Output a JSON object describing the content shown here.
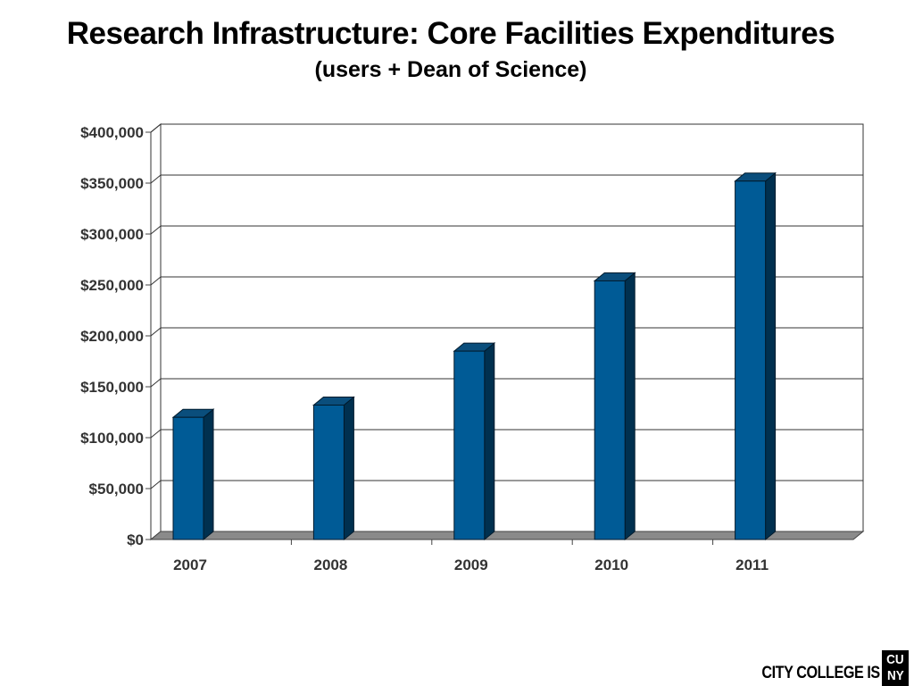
{
  "chart_data": {
    "type": "bar",
    "title": "Research Infrastructure: Core Facilities Expenditures",
    "subtitle": "(users + Dean of Science)",
    "categories": [
      "2007",
      "2008",
      "2009",
      "2010",
      "2011"
    ],
    "values": [
      120000,
      132000,
      185000,
      254000,
      352000
    ],
    "ylim": [
      0,
      400000
    ],
    "yticks": [
      "$0",
      "$50,000",
      "$100,000",
      "$150,000",
      "$200,000",
      "$250,000",
      "$300,000",
      "$350,000",
      "$400,000"
    ],
    "ytick_values": [
      0,
      50000,
      100000,
      150000,
      200000,
      250000,
      300000,
      350000,
      400000
    ],
    "grid": true,
    "style": "3d",
    "colors": {
      "bar_front": "#005b96",
      "bar_side": "#00304f",
      "bar_top": "#0a4e7c",
      "floor": "#8a8a8a",
      "grid": "#333333"
    }
  },
  "footer": {
    "text": "CITY COLLEGE IS",
    "logo_line1": "CU",
    "logo_line2": "NY"
  }
}
